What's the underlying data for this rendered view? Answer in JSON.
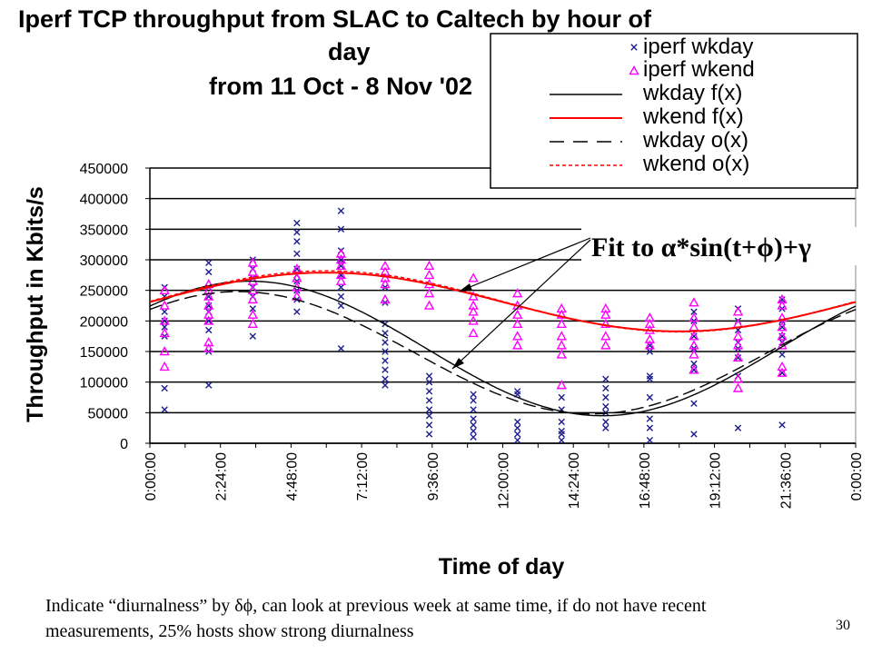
{
  "slide": {
    "title_lines": [
      "Iperf TCP throughput from SLAC to Caltech by hour of",
      "day",
      "from 11 Oct - 8 Nov '02"
    ],
    "annotation": "Fit to α*sin(t+ϕ)+γ",
    "caption": "Indicate “diurnalness” by δϕ, can look at previous week at same time, if do not have recent measurements, 25% hosts show strong diurnalness",
    "page_number": "30"
  },
  "chart_data": {
    "type": "scatter",
    "xlabel": "Time of day",
    "ylabel": "Throughput in Kbits/s",
    "xlim": [
      0,
      24
    ],
    "ylim": [
      0,
      450000
    ],
    "grid": true,
    "legend_position": "top-right",
    "x_ticks": [
      "0:00:00",
      "2:24:00",
      "4:48:00",
      "7:12:00",
      "9:36:00",
      "12:00:00",
      "14:24:00",
      "16:48:00",
      "19:12:00",
      "21:36:00",
      "0:00:00"
    ],
    "y_ticks": [
      "0",
      "50000",
      "100000",
      "150000",
      "200000",
      "250000",
      "300000",
      "350000",
      "400000",
      "450000"
    ],
    "colors": {
      "wkday": "#1c1c8c",
      "wkend": "#ff00ff",
      "wkday_fit": "#000000",
      "wkend_fit": "#ff0000"
    },
    "series": [
      {
        "name": "iperf wkday",
        "marker": "x",
        "points": [
          [
            0.5,
            55000
          ],
          [
            0.5,
            90000
          ],
          [
            0.5,
            175000
          ],
          [
            0.5,
            190000
          ],
          [
            0.5,
            200000
          ],
          [
            0.5,
            215000
          ],
          [
            0.5,
            240000
          ],
          [
            0.5,
            255000
          ],
          [
            2.0,
            95000
          ],
          [
            2.0,
            150000
          ],
          [
            2.0,
            185000
          ],
          [
            2.0,
            200000
          ],
          [
            2.0,
            215000
          ],
          [
            2.0,
            225000
          ],
          [
            2.0,
            240000
          ],
          [
            2.0,
            255000
          ],
          [
            2.0,
            280000
          ],
          [
            2.0,
            295000
          ],
          [
            3.5,
            175000
          ],
          [
            3.5,
            220000
          ],
          [
            3.5,
            240000
          ],
          [
            3.5,
            255000
          ],
          [
            3.5,
            270000
          ],
          [
            3.5,
            285000
          ],
          [
            3.5,
            300000
          ],
          [
            5.0,
            215000
          ],
          [
            5.0,
            235000
          ],
          [
            5.0,
            250000
          ],
          [
            5.0,
            265000
          ],
          [
            5.0,
            275000
          ],
          [
            5.0,
            285000
          ],
          [
            5.0,
            310000
          ],
          [
            5.0,
            330000
          ],
          [
            5.0,
            345000
          ],
          [
            5.0,
            360000
          ],
          [
            6.5,
            155000
          ],
          [
            6.5,
            225000
          ],
          [
            6.5,
            240000
          ],
          [
            6.5,
            255000
          ],
          [
            6.5,
            275000
          ],
          [
            6.5,
            290000
          ],
          [
            6.5,
            300000
          ],
          [
            6.5,
            315000
          ],
          [
            6.5,
            350000
          ],
          [
            6.5,
            380000
          ],
          [
            8.0,
            95000
          ],
          [
            8.0,
            105000
          ],
          [
            8.0,
            120000
          ],
          [
            8.0,
            135000
          ],
          [
            8.0,
            150000
          ],
          [
            8.0,
            165000
          ],
          [
            8.0,
            180000
          ],
          [
            8.0,
            195000
          ],
          [
            8.0,
            230000
          ],
          [
            8.0,
            255000
          ],
          [
            9.5,
            15000
          ],
          [
            9.5,
            30000
          ],
          [
            9.5,
            45000
          ],
          [
            9.5,
            55000
          ],
          [
            9.5,
            70000
          ],
          [
            9.5,
            85000
          ],
          [
            9.5,
            100000
          ],
          [
            9.5,
            110000
          ],
          [
            11.0,
            10000
          ],
          [
            11.0,
            20000
          ],
          [
            11.0,
            30000
          ],
          [
            11.0,
            40000
          ],
          [
            11.0,
            55000
          ],
          [
            11.0,
            70000
          ],
          [
            11.0,
            80000
          ],
          [
            12.5,
            5000
          ],
          [
            12.5,
            15000
          ],
          [
            12.5,
            25000
          ],
          [
            12.5,
            35000
          ],
          [
            12.5,
            80000
          ],
          [
            12.5,
            85000
          ],
          [
            14.0,
            5000
          ],
          [
            14.0,
            15000
          ],
          [
            14.0,
            20000
          ],
          [
            14.0,
            35000
          ],
          [
            14.0,
            55000
          ],
          [
            14.0,
            75000
          ],
          [
            15.5,
            25000
          ],
          [
            15.5,
            35000
          ],
          [
            15.5,
            50000
          ],
          [
            15.5,
            60000
          ],
          [
            15.5,
            75000
          ],
          [
            15.5,
            90000
          ],
          [
            15.5,
            105000
          ],
          [
            17.0,
            5000
          ],
          [
            17.0,
            25000
          ],
          [
            17.0,
            40000
          ],
          [
            17.0,
            75000
          ],
          [
            17.0,
            105000
          ],
          [
            17.0,
            110000
          ],
          [
            17.0,
            150000
          ],
          [
            17.0,
            160000
          ],
          [
            18.5,
            15000
          ],
          [
            18.5,
            65000
          ],
          [
            18.5,
            120000
          ],
          [
            18.5,
            130000
          ],
          [
            18.5,
            155000
          ],
          [
            18.5,
            175000
          ],
          [
            18.5,
            200000
          ],
          [
            18.5,
            215000
          ],
          [
            20.0,
            25000
          ],
          [
            20.0,
            110000
          ],
          [
            20.0,
            140000
          ],
          [
            20.0,
            155000
          ],
          [
            20.0,
            165000
          ],
          [
            20.0,
            185000
          ],
          [
            20.0,
            200000
          ],
          [
            20.0,
            220000
          ],
          [
            21.5,
            30000
          ],
          [
            21.5,
            115000
          ],
          [
            21.5,
            145000
          ],
          [
            21.5,
            165000
          ],
          [
            21.5,
            175000
          ],
          [
            21.5,
            190000
          ],
          [
            21.5,
            200000
          ],
          [
            21.5,
            220000
          ],
          [
            21.5,
            235000
          ]
        ]
      },
      {
        "name": "iperf wkend",
        "marker": "triangle",
        "points": [
          [
            0.5,
            125000
          ],
          [
            0.5,
            150000
          ],
          [
            0.5,
            180000
          ],
          [
            0.5,
            200000
          ],
          [
            0.5,
            225000
          ],
          [
            0.5,
            250000
          ],
          [
            2.0,
            155000
          ],
          [
            2.0,
            165000
          ],
          [
            2.0,
            200000
          ],
          [
            2.0,
            210000
          ],
          [
            2.0,
            225000
          ],
          [
            2.0,
            240000
          ],
          [
            2.0,
            250000
          ],
          [
            2.0,
            260000
          ],
          [
            3.5,
            195000
          ],
          [
            3.5,
            210000
          ],
          [
            3.5,
            235000
          ],
          [
            3.5,
            250000
          ],
          [
            3.5,
            265000
          ],
          [
            3.5,
            280000
          ],
          [
            3.5,
            295000
          ],
          [
            5.0,
            240000
          ],
          [
            5.0,
            255000
          ],
          [
            5.0,
            270000
          ],
          [
            5.0,
            285000
          ],
          [
            6.5,
            265000
          ],
          [
            6.5,
            275000
          ],
          [
            6.5,
            290000
          ],
          [
            6.5,
            300000
          ],
          [
            6.5,
            310000
          ],
          [
            8.0,
            235000
          ],
          [
            8.0,
            260000
          ],
          [
            8.0,
            270000
          ],
          [
            8.0,
            280000
          ],
          [
            8.0,
            290000
          ],
          [
            9.5,
            225000
          ],
          [
            9.5,
            245000
          ],
          [
            9.5,
            260000
          ],
          [
            9.5,
            275000
          ],
          [
            9.5,
            290000
          ],
          [
            11.0,
            180000
          ],
          [
            11.0,
            200000
          ],
          [
            11.0,
            215000
          ],
          [
            11.0,
            225000
          ],
          [
            11.0,
            240000
          ],
          [
            11.0,
            270000
          ],
          [
            12.5,
            160000
          ],
          [
            12.5,
            175000
          ],
          [
            12.5,
            195000
          ],
          [
            12.5,
            210000
          ],
          [
            12.5,
            225000
          ],
          [
            12.5,
            245000
          ],
          [
            14.0,
            95000
          ],
          [
            14.0,
            145000
          ],
          [
            14.0,
            160000
          ],
          [
            14.0,
            175000
          ],
          [
            14.0,
            195000
          ],
          [
            14.0,
            210000
          ],
          [
            14.0,
            220000
          ],
          [
            15.5,
            160000
          ],
          [
            15.5,
            175000
          ],
          [
            15.5,
            195000
          ],
          [
            15.5,
            210000
          ],
          [
            15.5,
            220000
          ],
          [
            17.0,
            160000
          ],
          [
            17.0,
            170000
          ],
          [
            17.0,
            185000
          ],
          [
            17.0,
            195000
          ],
          [
            17.0,
            205000
          ],
          [
            18.5,
            120000
          ],
          [
            18.5,
            145000
          ],
          [
            18.5,
            160000
          ],
          [
            18.5,
            175000
          ],
          [
            18.5,
            190000
          ],
          [
            18.5,
            205000
          ],
          [
            18.5,
            230000
          ],
          [
            20.0,
            90000
          ],
          [
            20.0,
            105000
          ],
          [
            20.0,
            140000
          ],
          [
            20.0,
            160000
          ],
          [
            20.0,
            175000
          ],
          [
            20.0,
            195000
          ],
          [
            20.0,
            215000
          ],
          [
            21.5,
            115000
          ],
          [
            21.5,
            125000
          ],
          [
            21.5,
            160000
          ],
          [
            21.5,
            175000
          ],
          [
            21.5,
            190000
          ],
          [
            21.5,
            205000
          ],
          [
            21.5,
            225000
          ],
          [
            21.5,
            235000
          ]
        ]
      },
      {
        "name": "wkday f(x)",
        "style": "solid",
        "fit": {
          "amplitude": 110000,
          "phase_hour": 21.4,
          "offset": 155000
        }
      },
      {
        "name": "wkend f(x)",
        "style": "solid",
        "fit": {
          "amplitude": 48000,
          "phase_hour": 0.0,
          "offset": 231000
        }
      },
      {
        "name": "wkday o(x)",
        "style": "long-dash",
        "fit": {
          "amplitude": 100000,
          "phase_hour": 21.0,
          "offset": 148000
        }
      },
      {
        "name": "wkend o(x)",
        "style": "short-dash",
        "fit": {
          "amplitude": 50000,
          "phase_hour": 24.0,
          "offset": 232000
        }
      }
    ]
  }
}
